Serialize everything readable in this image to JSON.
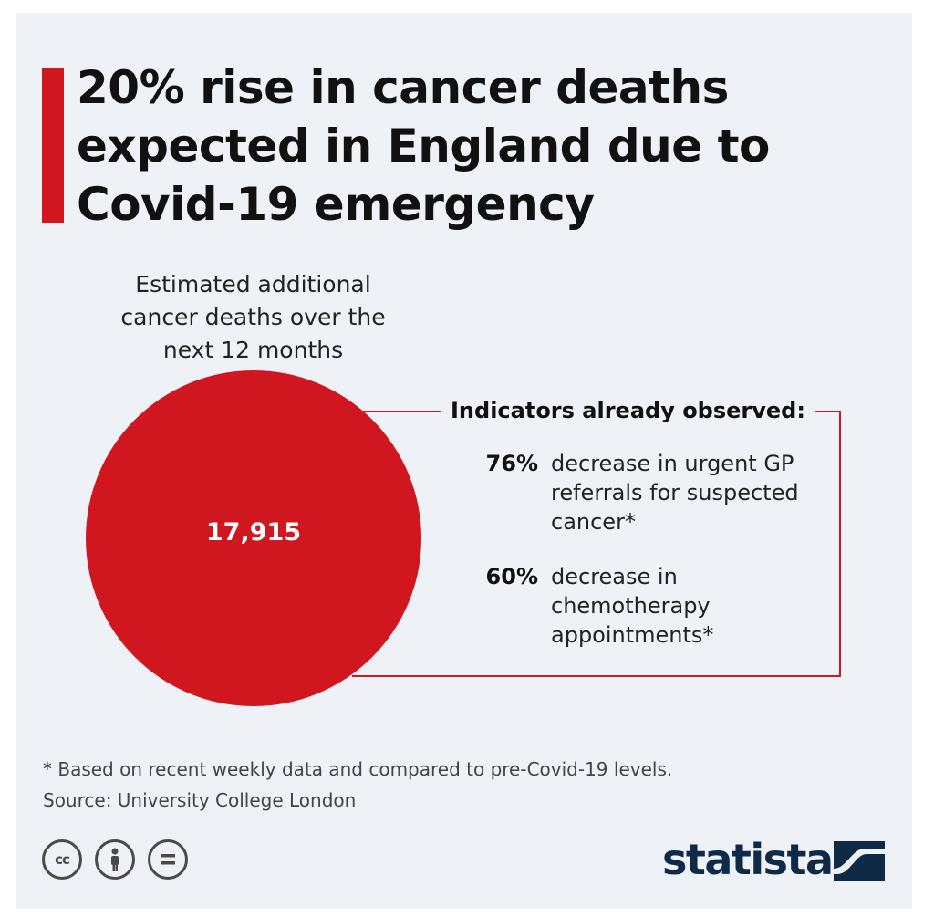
{
  "title": "20% rise in cancer deaths expected in England due to Covid-19 emergency",
  "colors": {
    "accent": "#d0161e",
    "background": "#eef2f6",
    "logo": "#0f2a47"
  },
  "chart_data": {
    "type": "bubble",
    "value_label": "Estimated additional cancer deaths over the next 12 months",
    "value": 17915,
    "value_display": "17,915",
    "indicators_title": "Indicators already observed:",
    "indicators": [
      {
        "percent": "76%",
        "text": "decrease in urgent GP referrals for suspected cancer*"
      },
      {
        "percent": "60%",
        "text": "decrease in chemotherapy appointments*"
      }
    ]
  },
  "footnote": "* Based on recent weekly data and compared to pre-Covid-19 levels.",
  "source": "Source: University College London",
  "icons": [
    "creative-commons-icon",
    "attribution-icon",
    "no-derivatives-icon"
  ],
  "logo": "statista"
}
